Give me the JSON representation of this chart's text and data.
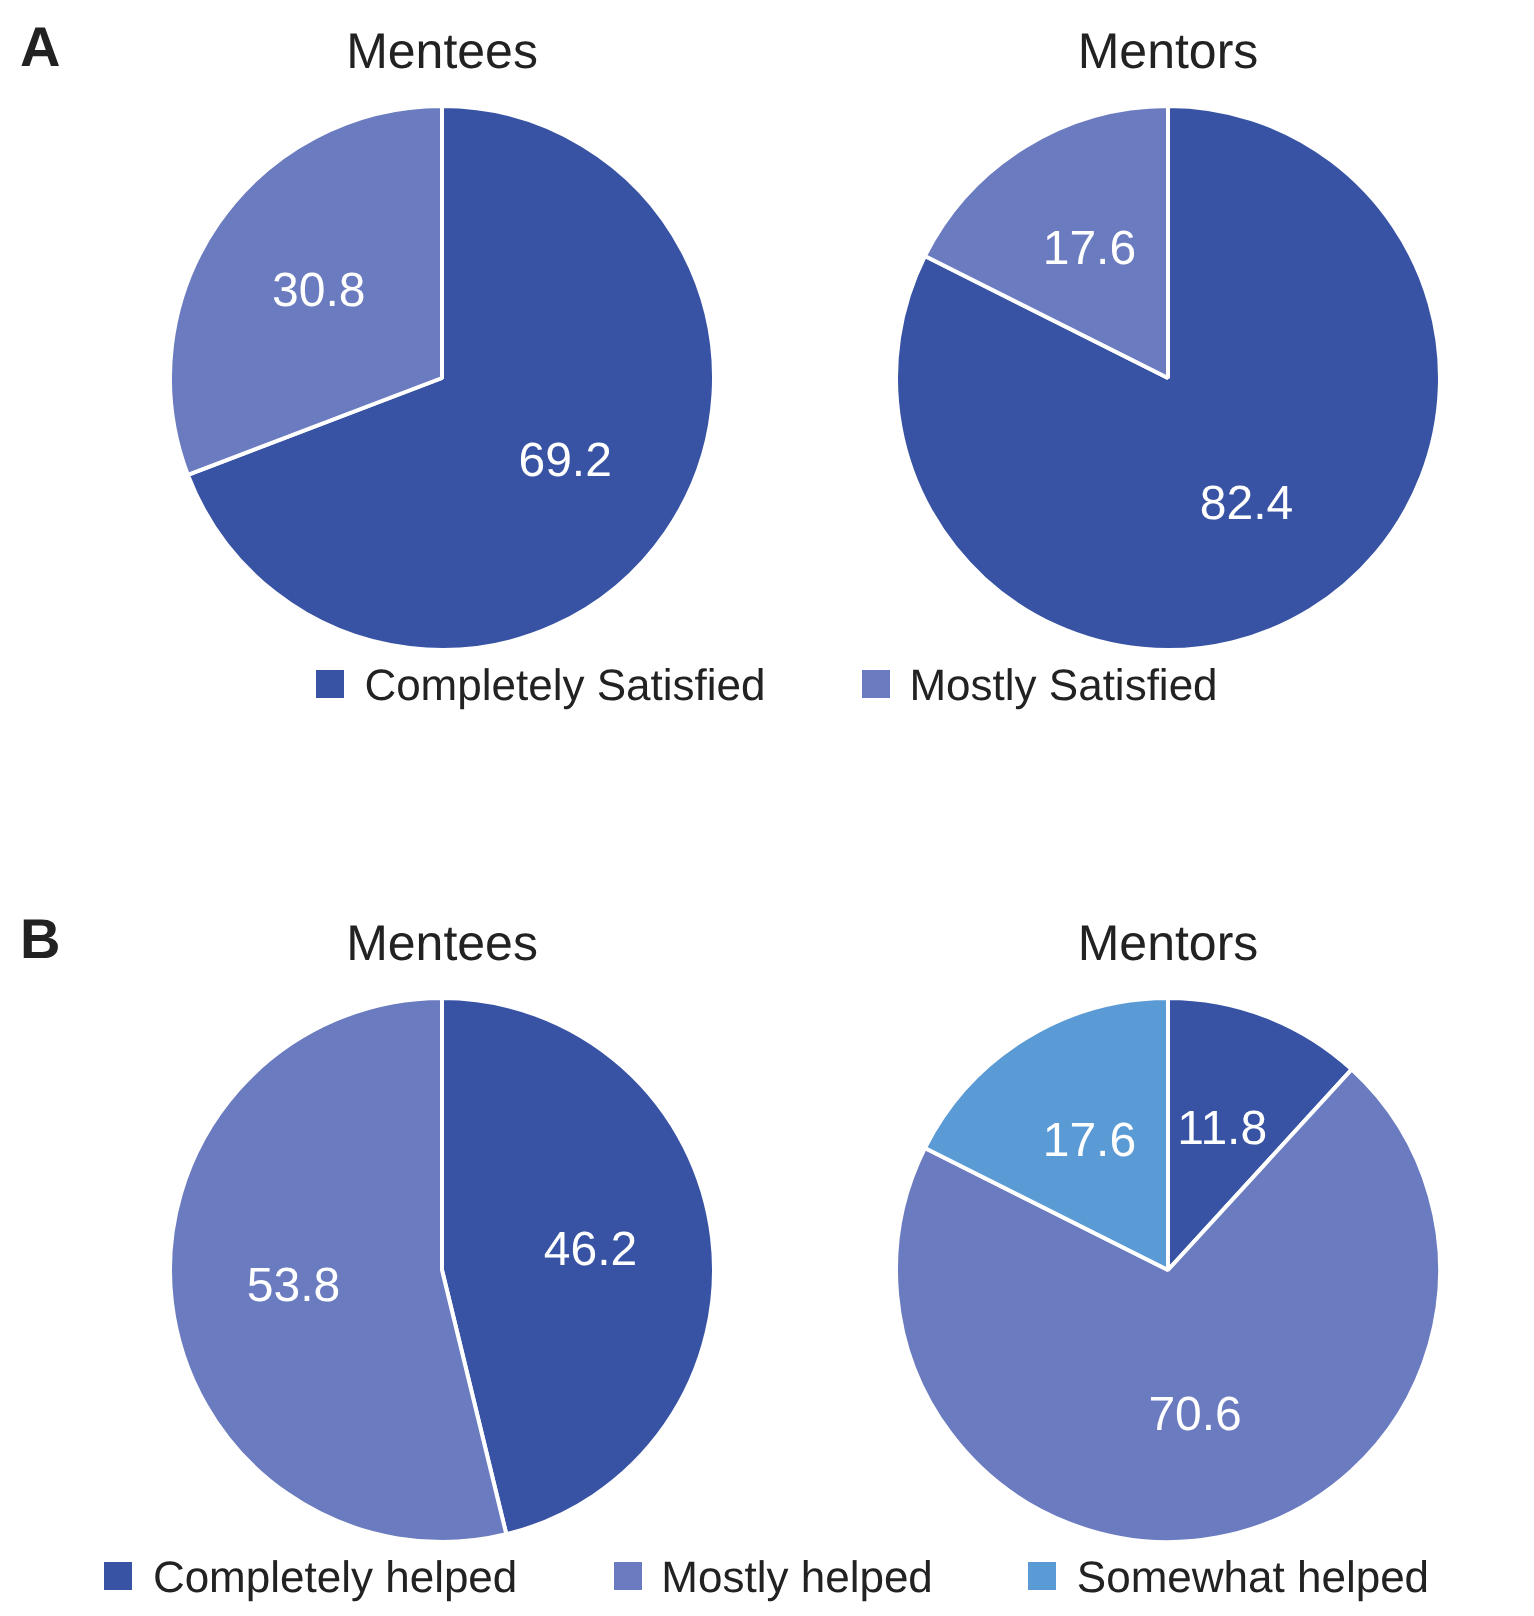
{
  "chart_data": [
    {
      "type": "pie",
      "title": "Mentees",
      "categories": [
        "Completely Satisfied",
        "Mostly Satisfied"
      ],
      "values": [
        69.2,
        30.8
      ],
      "colors": [
        "#3853a4",
        "#6b7bbf"
      ],
      "data_labels": true,
      "legend": "bottom",
      "annotations": [
        "A"
      ]
    },
    {
      "type": "pie",
      "title": "Mentors",
      "categories": [
        null,
        null
      ],
      "values": [
        82.4,
        17.6
      ],
      "colors": [
        "#3853a4",
        "#6b7bbf"
      ],
      "data_labels": true
    },
    {
      "type": "pie",
      "title": "Mentees",
      "categories": [
        "Completely helped",
        "Mostly helped"
      ],
      "values": [
        46.2,
        53.8
      ],
      "colors": [
        "#3853a4",
        "#6b7bbf"
      ],
      "data_labels": true,
      "legend": "bottom",
      "annotations": [
        "B"
      ]
    },
    {
      "type": "pie",
      "title": "Mentors",
      "categories": [
        null,
        null,
        "Somewhat helped"
      ],
      "values": [
        11.8,
        70.6,
        17.6
      ],
      "colors": [
        "#3853a4",
        "#6b7bbf",
        "#5b9bd5"
      ],
      "data_labels": true,
      "legend": "bottom"
    }
  ]
}
